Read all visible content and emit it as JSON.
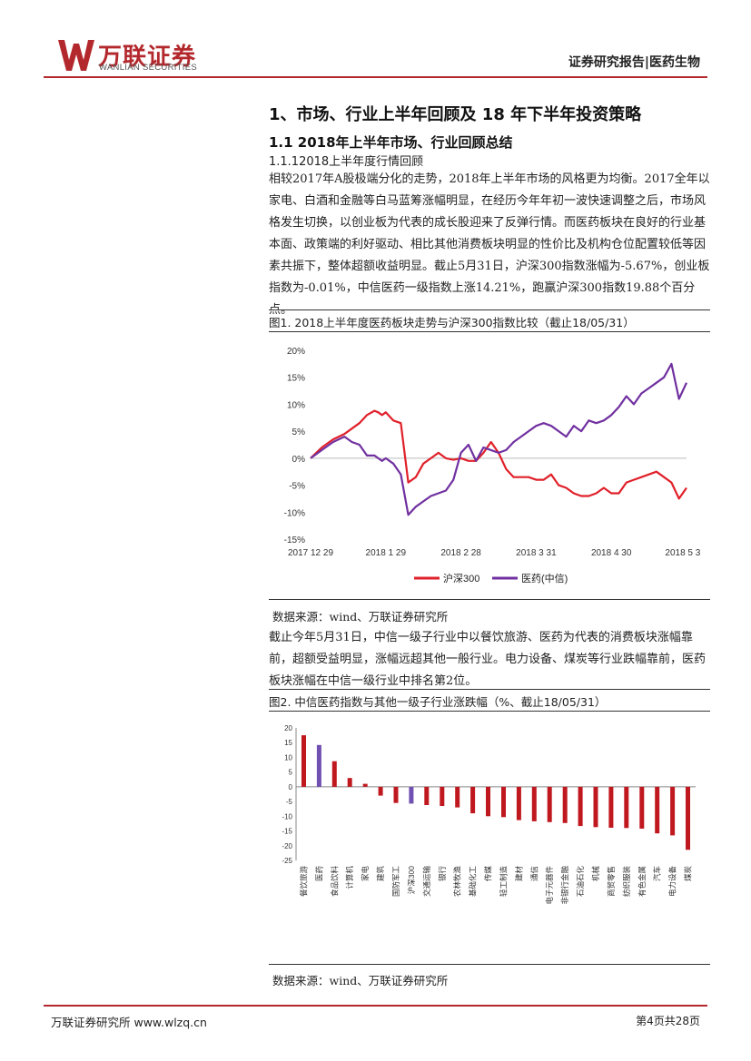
{
  "header": {
    "logo_cn": "万联证券",
    "logo_en": "WANLIAN SECURITIES",
    "right": "证券研究报告|医药生物"
  },
  "section_title": "1、市场、行业上半年回顾及 18 年下半年投资策略",
  "subsection_title": "1.1 2018年上半年市场、行业回顾总结",
  "subsubsection_title": "1.1.12018上半年度行情回顾",
  "paragraph1": "相较2017年A股极端分化的走势，2018年上半年市场的风格更为均衡。2017全年以家电、白酒和金融等白马蓝筹涨幅明显，在经历今年年初一波快速调整之后，市场风格发生切换，以创业板为代表的成长股迎来了反弹行情。而医药板块在良好的行业基本面、政策端的利好驱动、相比其他消费板块明显的性价比及机构仓位配置较低等因素共振下，整体超额收益明显。截止5月31日，沪深300指数涨幅为-5.67%，创业板指数为-0.01%，中信医药一级指数上涨14.21%，跑赢沪深300指数19.88个百分点。",
  "figure1": {
    "title": "图1. 2018上半年度医药板块走势与沪深300指数比较（截止18/05/31）",
    "source": "数据来源：wind、万联证券研究所"
  },
  "paragraph2": "截止今年5月31日，中信一级子行业中以餐饮旅游、医药为代表的消费板块涨幅靠前，超额受益明显，涨幅远超其他一般行业。电力设备、煤炭等行业跌幅靠前，医药板块涨幅在中信一级行业中排名第2位。",
  "figure2": {
    "title": "图2. 中信医药指数与其他一级子行业涨跌幅（%、截止18/05/31）",
    "source": "数据来源：wind、万联证券研究所"
  },
  "footer": {
    "left": "万联证券研究所 www.wlzq.cn",
    "right": "第4页共28页"
  },
  "colors": {
    "brand": "#b3282d",
    "red_series": "#e0202a",
    "purple_series": "#7030a0",
    "bar_red": "#c0181f",
    "bar_purple": "#7050b0"
  },
  "chart_data": [
    {
      "type": "line",
      "x_ticks": [
        "2017 12 29",
        "2018 1 29",
        "2018 2 28",
        "2018 3 31",
        "2018 4 30",
        "2018 5 3"
      ],
      "y_ticks": [
        "20%",
        "15%",
        "10%",
        "5%",
        "0%",
        "-5%",
        "-10%",
        "-15%"
      ],
      "ylim": [
        -15,
        20
      ],
      "legend_position": "bottom",
      "series": [
        {
          "name": "沪深300",
          "color": "#e0202a",
          "x": [
            0,
            3,
            6,
            9,
            11,
            13,
            15,
            17,
            18,
            19,
            20,
            22,
            24,
            26,
            28,
            30,
            32,
            34,
            36,
            38,
            40,
            42,
            44,
            46,
            48,
            50,
            52,
            54,
            56,
            58,
            60,
            62,
            64,
            66,
            68,
            70,
            72,
            74,
            76,
            78,
            80,
            82,
            84,
            86,
            88,
            90,
            92,
            94,
            96,
            98,
            100
          ],
          "values": [
            0,
            2,
            3.5,
            4.5,
            5.5,
            6.5,
            8,
            8.8,
            8.5,
            8,
            8.5,
            7,
            6.5,
            -4.5,
            -3.5,
            -1,
            0,
            1,
            0,
            -0.3,
            0,
            -0.5,
            -0.5,
            1,
            3,
            1,
            -2,
            -3.5,
            -3.5,
            -3.5,
            -4,
            -4,
            -3,
            -5,
            -5.5,
            -6.5,
            -7,
            -7,
            -6.5,
            -5.5,
            -6.5,
            -6.5,
            -4.5,
            -4,
            -3.5,
            -3,
            -2.5,
            -3.5,
            -4.5,
            -7.5,
            -5.5
          ]
        },
        {
          "name": "医药(中信)",
          "color": "#7030a0",
          "x": [
            0,
            3,
            6,
            9,
            11,
            13,
            15,
            17,
            18,
            19,
            20,
            22,
            24,
            26,
            28,
            30,
            32,
            34,
            36,
            38,
            40,
            42,
            44,
            46,
            48,
            50,
            52,
            54,
            56,
            58,
            60,
            62,
            64,
            66,
            68,
            70,
            72,
            74,
            76,
            78,
            80,
            82,
            84,
            86,
            88,
            90,
            92,
            94,
            96,
            98,
            100
          ],
          "values": [
            0,
            1.5,
            3,
            4,
            3,
            2.5,
            0.5,
            0.5,
            0,
            -0.5,
            0,
            -1,
            -3,
            -10.5,
            -9,
            -8,
            -7,
            -6.5,
            -6,
            -4,
            1,
            2.5,
            -0.5,
            2,
            1.5,
            1,
            1.5,
            3,
            4,
            5,
            6,
            6.5,
            6,
            5,
            4,
            6,
            5,
            7,
            6.5,
            7,
            8,
            9.5,
            11.5,
            10,
            12,
            13,
            14,
            15,
            17.5,
            11,
            14
          ]
        }
      ]
    },
    {
      "type": "bar",
      "ylim": [
        -25,
        20
      ],
      "y_ticks": [
        "20",
        "15",
        "10",
        "5",
        "0",
        "-5",
        "-10",
        "-15",
        "-20",
        "-25"
      ],
      "categories": [
        "餐饮旅游",
        "医药",
        "食品饮料",
        "计算机",
        "家电",
        "建筑",
        "国防军工",
        "沪深300",
        "交通运输",
        "银行",
        "农林牧渔",
        "基础化工",
        "传媒",
        "轻工制造",
        "建材",
        "通信",
        "电子元器件",
        "非银行金融",
        "石油石化",
        "机械",
        "商贸零售",
        "纺织服装",
        "有色金属",
        "汽车",
        "电力设备",
        "煤炭"
      ],
      "values": [
        17.5,
        14.2,
        8.7,
        3,
        1,
        -3,
        -5.5,
        -5.7,
        -6.2,
        -6.5,
        -7,
        -9,
        -10,
        -10.3,
        -11.3,
        -11.7,
        -12,
        -12.3,
        -13.3,
        -13.7,
        -13.9,
        -14,
        -14.2,
        -15.8,
        -16.5,
        -21.4
      ],
      "highlight": [
        "医药",
        "沪深300"
      ]
    }
  ]
}
